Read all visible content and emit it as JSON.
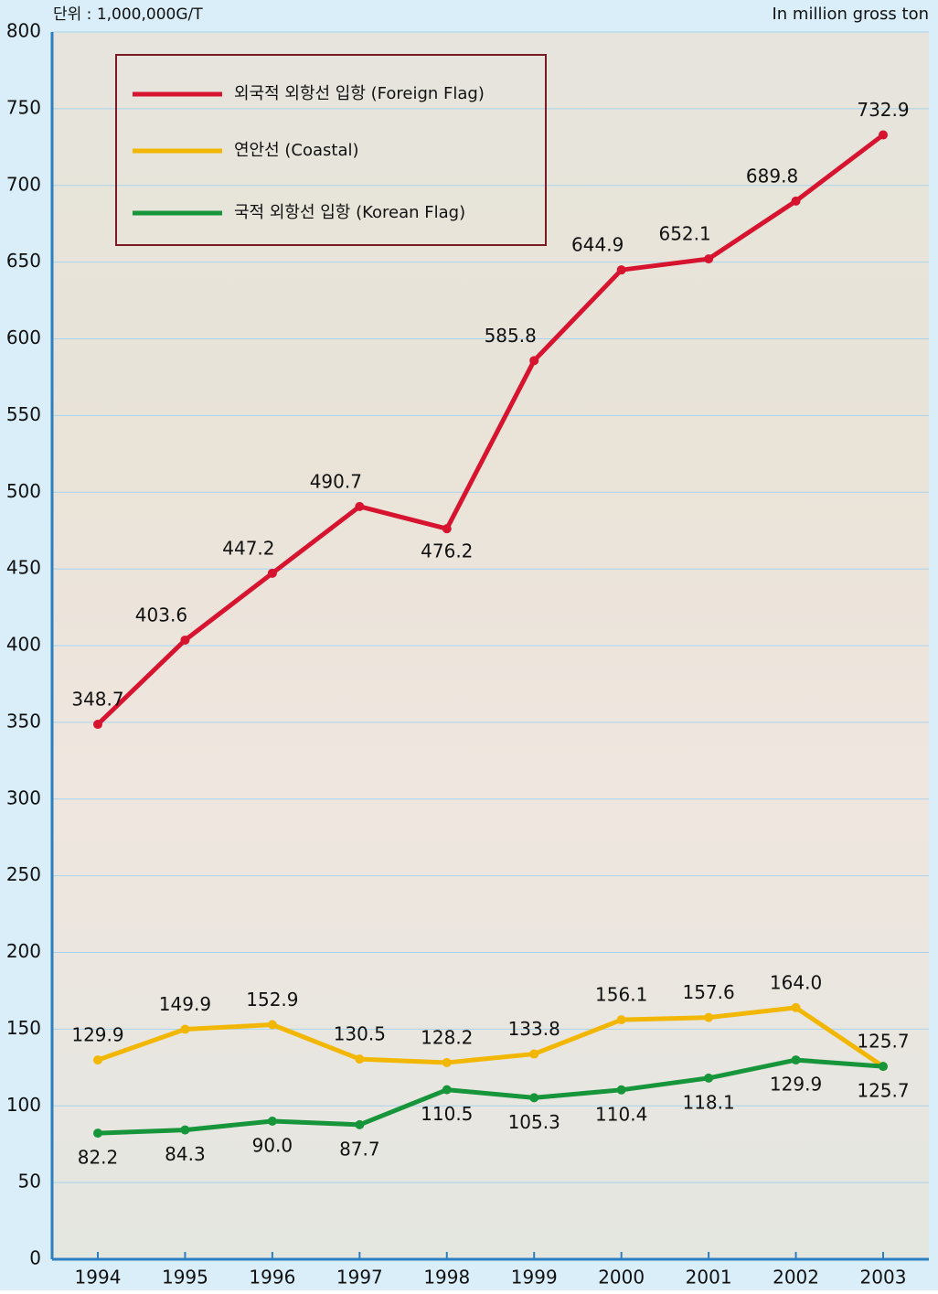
{
  "chart_data": {
    "type": "line",
    "unit_label_left": "단위 : 1,000,000G/T",
    "unit_label_right": "In million gross ton",
    "categories": [
      "1994",
      "1995",
      "1996",
      "1997",
      "1998",
      "1999",
      "2000",
      "2001",
      "2002",
      "2003"
    ],
    "series": [
      {
        "name": "외국적 외항선 입항 (Foreign Flag)",
        "color": "#d7142f",
        "values": [
          348.7,
          403.6,
          447.2,
          490.7,
          476.2,
          585.8,
          644.9,
          652.1,
          689.8,
          732.9
        ],
        "value_labels": [
          "348.7",
          "403.6",
          "447.2",
          "490.7",
          "476.2",
          "585.8",
          "644.9",
          "652.1",
          "689.8",
          "732.9"
        ]
      },
      {
        "name": "연안선 (Coastal)",
        "color": "#f2b705",
        "values": [
          129.9,
          149.9,
          152.9,
          130.5,
          128.2,
          133.8,
          156.1,
          157.6,
          164.0,
          125.7
        ],
        "value_labels": [
          "129.9",
          "149.9",
          "152.9",
          "130.5",
          "128.2",
          "133.8",
          "156.1",
          "157.6",
          "164.0",
          "125.7"
        ]
      },
      {
        "name": "국적 외항선 입항 (Korean Flag)",
        "color": "#16953a",
        "values": [
          82.2,
          84.3,
          90.0,
          87.7,
          110.5,
          105.3,
          110.4,
          118.1,
          129.9,
          125.7
        ],
        "value_labels": [
          "82.2",
          "84.3",
          "90.0",
          "87.7",
          "110.5",
          "105.3",
          "110.4",
          "118.1",
          "129.9",
          "125.7"
        ]
      }
    ],
    "ylim": [
      0,
      800
    ],
    "yticks": [
      0,
      50,
      100,
      150,
      200,
      250,
      300,
      350,
      400,
      450,
      500,
      550,
      600,
      650,
      700,
      750,
      800
    ],
    "grid": true
  }
}
